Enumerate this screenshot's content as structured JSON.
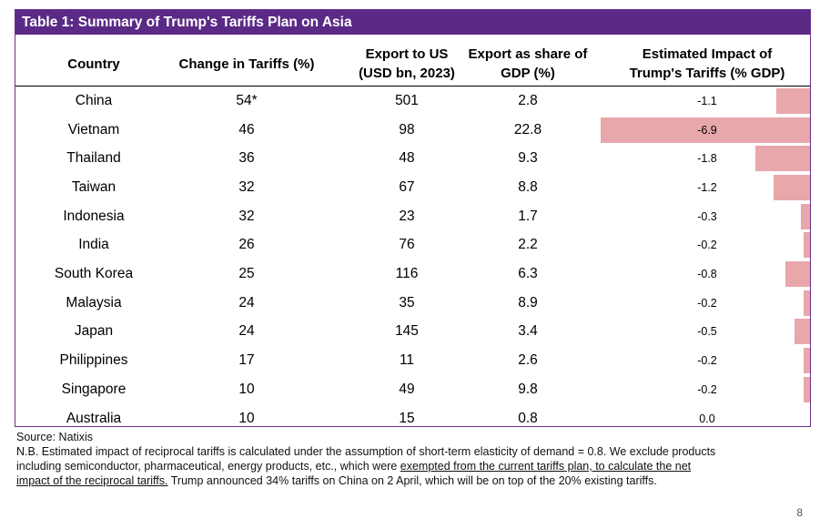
{
  "table": {
    "title": "Table 1: Summary of Trump's Tariffs Plan on Asia",
    "headers": {
      "country": "Country",
      "tariff": "Change in Tariffs (%)",
      "export_l1": "Export to US",
      "export_l2": "(USD bn, 2023)",
      "share_l1": "Export as share of",
      "share_l2": "GDP (%)",
      "impact_l1": "Estimated Impact of",
      "impact_l2": "Trump's Tariffs (% GDP)"
    },
    "rows": [
      {
        "country": "China",
        "tariff": "54*",
        "export": "501",
        "share": "2.8",
        "impact": "-1.1",
        "impact_value": -1.1
      },
      {
        "country": "Vietnam",
        "tariff": "46",
        "export": "98",
        "share": "22.8",
        "impact": "-6.9",
        "impact_value": -6.9
      },
      {
        "country": "Thailand",
        "tariff": "36",
        "export": "48",
        "share": "9.3",
        "impact": "-1.8",
        "impact_value": -1.8
      },
      {
        "country": "Taiwan",
        "tariff": "32",
        "export": "67",
        "share": "8.8",
        "impact": "-1.2",
        "impact_value": -1.2
      },
      {
        "country": "Indonesia",
        "tariff": "32",
        "export": "23",
        "share": "1.7",
        "impact": "-0.3",
        "impact_value": -0.3
      },
      {
        "country": "India",
        "tariff": "26",
        "export": "76",
        "share": "2.2",
        "impact": "-0.2",
        "impact_value": -0.2
      },
      {
        "country": "South Korea",
        "tariff": "25",
        "export": "116",
        "share": "6.3",
        "impact": "-0.8",
        "impact_value": -0.8
      },
      {
        "country": "Malaysia",
        "tariff": "24",
        "export": "35",
        "share": "8.9",
        "impact": "-0.2",
        "impact_value": -0.2
      },
      {
        "country": "Japan",
        "tariff": "24",
        "export": "145",
        "share": "3.4",
        "impact": "-0.5",
        "impact_value": -0.5
      },
      {
        "country": "Philippines",
        "tariff": "17",
        "export": "11",
        "share": "2.6",
        "impact": "-0.2",
        "impact_value": -0.2
      },
      {
        "country": "Singapore",
        "tariff": "10",
        "export": "49",
        "share": "9.8",
        "impact": "-0.2",
        "impact_value": -0.2
      },
      {
        "country": "Australia",
        "tariff": "10",
        "export": "15",
        "share": "0.8",
        "impact": "0.0",
        "impact_value": 0.0
      }
    ],
    "bar_color": "#e8a7ab",
    "header_color": "#5b2a86"
  },
  "footnotes": {
    "source": "Source: Natixis",
    "nb_line1": "N.B. Estimated impact of reciprocal tariffs is calculated under the assumption of short-term elasticity of demand = 0.8. We exclude products",
    "nb_line2_plain": "including semiconductor, pharmaceutical, energy products, etc., which were ",
    "nb_line2_under": "exempted from the current tariffs plan, to calculate the net",
    "nb_line3_under": "impact of the reciprocal tariffs.",
    "nb_line3_plain": " Trump announced 34% tariffs on China on 2 April, which will be on top of the 20% existing tariffs."
  },
  "page_number": "8"
}
